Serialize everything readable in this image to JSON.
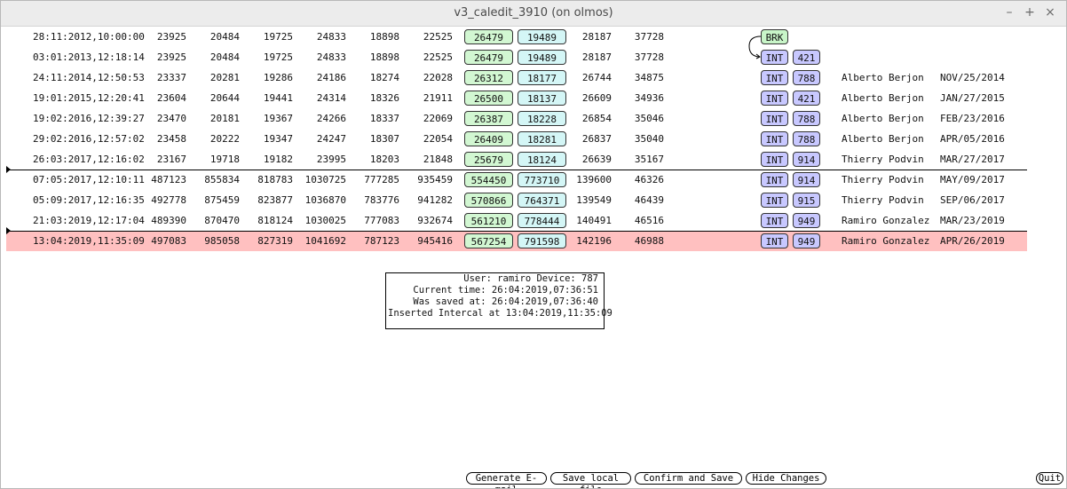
{
  "window": {
    "title": "v3_caledit_3910 (on olmos)",
    "minimize": "–",
    "maximize": "+",
    "close": "×"
  },
  "rows": [
    {
      "date": "28:11:2012,10:00:00",
      "v": [
        "23925",
        "20484",
        "19725",
        "24833",
        "18898",
        "22525"
      ],
      "g": "26479",
      "c": "19489",
      "v7": "28187",
      "v8": "37728",
      "tag": "BRK",
      "code": "",
      "user": "",
      "sdate": ""
    },
    {
      "date": "03:01:2013,12:18:14",
      "v": [
        "23925",
        "20484",
        "19725",
        "24833",
        "18898",
        "22525"
      ],
      "g": "26479",
      "c": "19489",
      "v7": "28187",
      "v8": "37728",
      "tag": "INT",
      "code": "421",
      "user": "",
      "sdate": ""
    },
    {
      "date": "24:11:2014,12:50:53",
      "v": [
        "23337",
        "20281",
        "19286",
        "24186",
        "18274",
        "22028"
      ],
      "g": "26312",
      "c": "18177",
      "v7": "26744",
      "v8": "34875",
      "tag": "INT",
      "code": "788",
      "user": "Alberto Berjon",
      "sdate": "NOV/25/2014"
    },
    {
      "date": "19:01:2015,12:20:41",
      "v": [
        "23604",
        "20644",
        "19441",
        "24314",
        "18326",
        "21911"
      ],
      "g": "26500",
      "c": "18137",
      "v7": "26609",
      "v8": "34936",
      "tag": "INT",
      "code": "421",
      "user": "Alberto Berjon",
      "sdate": "JAN/27/2015"
    },
    {
      "date": "19:02:2016,12:39:27",
      "v": [
        "23470",
        "20181",
        "19367",
        "24266",
        "18337",
        "22069"
      ],
      "g": "26387",
      "c": "18228",
      "v7": "26854",
      "v8": "35046",
      "tag": "INT",
      "code": "788",
      "user": "Alberto Berjon",
      "sdate": "FEB/23/2016"
    },
    {
      "date": "29:02:2016,12:57:02",
      "v": [
        "23458",
        "20222",
        "19347",
        "24247",
        "18307",
        "22054"
      ],
      "g": "26409",
      "c": "18281",
      "v7": "26837",
      "v8": "35040",
      "tag": "INT",
      "code": "788",
      "user": "Alberto Berjon",
      "sdate": "APR/05/2016"
    },
    {
      "date": "26:03:2017,12:16:02",
      "v": [
        "23167",
        "19718",
        "19182",
        "23995",
        "18203",
        "21848"
      ],
      "g": "25679",
      "c": "18124",
      "v7": "26639",
      "v8": "35167",
      "tag": "INT",
      "code": "914",
      "user": "Thierry Podvin",
      "sdate": "MAR/27/2017"
    },
    {
      "date": "07:05:2017,12:10:11",
      "v": [
        "487123",
        "855834",
        "818783",
        "1030725",
        "777285",
        "935459"
      ],
      "g": "554450",
      "c": "773710",
      "v7": "139600",
      "v8": "46326",
      "tag": "INT",
      "code": "914",
      "user": "Thierry Podvin",
      "sdate": "MAY/09/2017"
    },
    {
      "date": "05:09:2017,12:16:35",
      "v": [
        "492778",
        "875459",
        "823877",
        "1036870",
        "783776",
        "941282"
      ],
      "g": "570866",
      "c": "764371",
      "v7": "139549",
      "v8": "46439",
      "tag": "INT",
      "code": "915",
      "user": "Thierry Podvin",
      "sdate": "SEP/06/2017"
    },
    {
      "date": "21:03:2019,12:17:04",
      "v": [
        "489390",
        "870470",
        "818124",
        "1030025",
        "777083",
        "932674"
      ],
      "g": "561210",
      "c": "778444",
      "v7": "140491",
      "v8": "46516",
      "tag": "INT",
      "code": "949",
      "user": "Ramiro Gonzalez",
      "sdate": "MAR/23/2019"
    },
    {
      "date": "13:04:2019,11:35:09",
      "v": [
        "497083",
        "985058",
        "827319",
        "1041692",
        "787123",
        "945416"
      ],
      "g": "567254",
      "c": "791598",
      "v7": "142196",
      "v8": "46988",
      "tag": "INT",
      "code": "949",
      "user": "Ramiro Gonzalez",
      "sdate": "APR/26/2019",
      "selected": true
    }
  ],
  "info": {
    "line1": "User: ramiro Device: 787",
    "line2": "Current time: 26:04:2019,07:36:51",
    "line3": "Was saved at: 26:04:2019,07:36:40",
    "line4": "Inserted Intercal at 13:04:2019,11:35:09"
  },
  "buttons": {
    "email": "Generate E-mail",
    "save_local": "Save local file",
    "confirm": "Confirm and Save",
    "hide": "Hide Changes",
    "quit": "Quit"
  },
  "colors": {
    "green_box": "#d2f7d2",
    "cyan_box": "#d4f6f6",
    "int_tag": "#c8c8ff",
    "selected_row": "#ffc0c0"
  }
}
